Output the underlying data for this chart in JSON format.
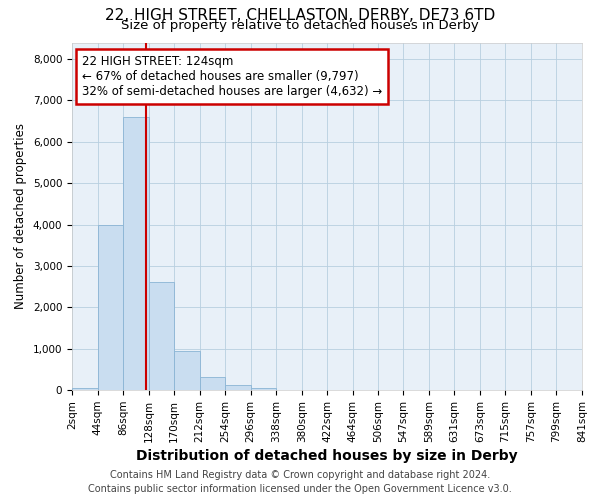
{
  "title1": "22, HIGH STREET, CHELLASTON, DERBY, DE73 6TD",
  "title2": "Size of property relative to detached houses in Derby",
  "xlabel": "Distribution of detached houses by size in Derby",
  "ylabel": "Number of detached properties",
  "footnote1": "Contains HM Land Registry data © Crown copyright and database right 2024.",
  "footnote2": "Contains public sector information licensed under the Open Government Licence v3.0.",
  "annotation_line1": "22 HIGH STREET: 124sqm",
  "annotation_line2": "← 67% of detached houses are smaller (9,797)",
  "annotation_line3": "32% of semi-detached houses are larger (4,632) →",
  "bins": [
    2,
    44,
    86,
    128,
    170,
    212,
    254,
    296,
    338,
    380,
    422,
    464,
    506,
    547,
    589,
    631,
    673,
    715,
    757,
    799,
    841
  ],
  "values": [
    50,
    4000,
    6600,
    2600,
    950,
    325,
    110,
    50,
    0,
    0,
    0,
    0,
    0,
    0,
    0,
    0,
    0,
    0,
    0,
    0
  ],
  "bar_color": "#c9ddf0",
  "bar_edge_color": "#8ab4d4",
  "vline_color": "#cc0000",
  "vline_x": 124,
  "ylim": [
    0,
    8400
  ],
  "yticks": [
    0,
    1000,
    2000,
    3000,
    4000,
    5000,
    6000,
    7000,
    8000
  ],
  "grid_color": "#b8cfe0",
  "plot_bg_color": "#e8f0f8",
  "fig_bg_color": "#ffffff",
  "annotation_box_color": "#cc0000",
  "title1_fontsize": 11,
  "title2_fontsize": 9.5,
  "xlabel_fontsize": 10,
  "ylabel_fontsize": 8.5,
  "tick_fontsize": 7.5,
  "annotation_fontsize": 8.5,
  "footnote_fontsize": 7
}
